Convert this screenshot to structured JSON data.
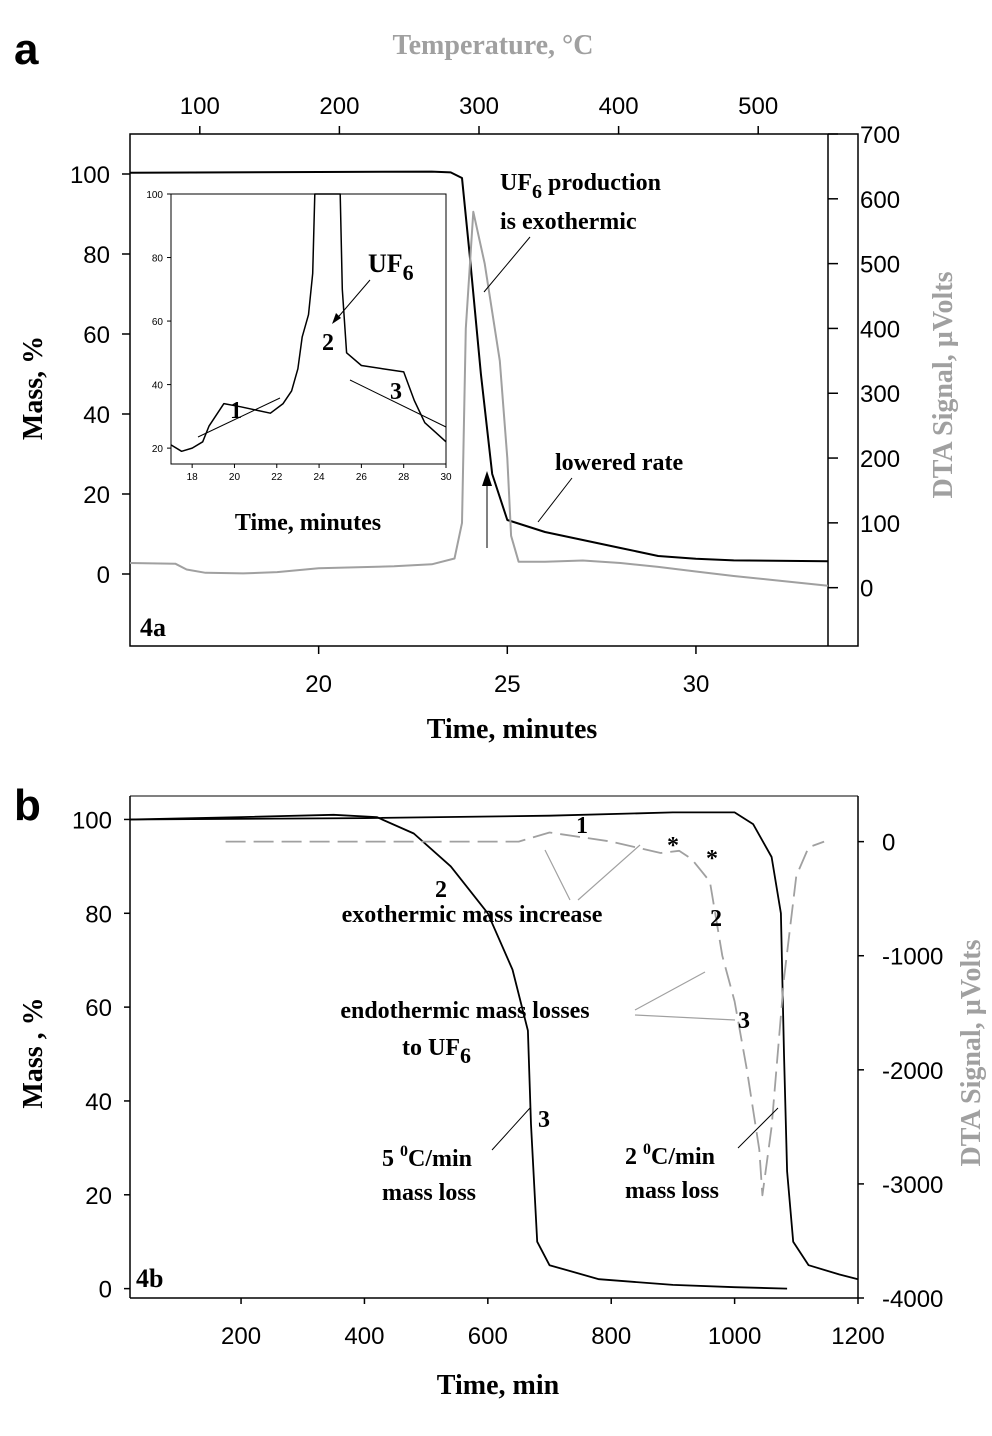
{
  "panel_a": {
    "letter": "a",
    "chart_data": {
      "type": "line",
      "xlabel": "Time, minutes",
      "top_xlabel": "Temperature, °C",
      "ylabel": "Mass, %",
      "y2label": "DTA Signal, µVolts",
      "panel_label": "4a",
      "xlim": [
        15,
        33.5
      ],
      "ylim": [
        -18,
        110
      ],
      "top_xlim": [
        50,
        550
      ],
      "y2lim": [
        -90,
        700
      ],
      "x_ticks": [
        20,
        25,
        30
      ],
      "y_ticks": [
        0,
        20,
        40,
        60,
        80,
        100
      ],
      "top_x_ticks": [
        100,
        200,
        300,
        400,
        500
      ],
      "y2_ticks": [
        0,
        100,
        200,
        300,
        400,
        500,
        600,
        700
      ],
      "series": [
        {
          "color": "#000000",
          "axis": "left",
          "points": [
            [
              15,
              100.3
            ],
            [
              20,
              100.5
            ],
            [
              23,
              100.6
            ],
            [
              23.5,
              100.4
            ],
            [
              23.8,
              99
            ],
            [
              24.0,
              80
            ],
            [
              24.3,
              50
            ],
            [
              24.6,
              25
            ],
            [
              25.0,
              13.5
            ],
            [
              25.5,
              12
            ],
            [
              26,
              10.5
            ],
            [
              27,
              8.5
            ],
            [
              28,
              6.5
            ],
            [
              29,
              4.5
            ],
            [
              30,
              3.8
            ],
            [
              31,
              3.4
            ],
            [
              33.5,
              3.2
            ]
          ]
        },
        {
          "color": "#a0a0a0",
          "axis": "right",
          "points": [
            [
              15,
              38
            ],
            [
              16.2,
              37
            ],
            [
              16.5,
              28
            ],
            [
              17,
              23
            ],
            [
              18,
              22
            ],
            [
              18.9,
              24
            ],
            [
              20,
              30
            ],
            [
              22,
              33
            ],
            [
              23,
              36
            ],
            [
              23.6,
              45
            ],
            [
              23.8,
              100
            ],
            [
              23.9,
              400
            ],
            [
              24.1,
              580
            ],
            [
              24.4,
              500
            ],
            [
              24.8,
              350
            ],
            [
              25.0,
              200
            ],
            [
              25.1,
              80
            ],
            [
              25.3,
              40
            ],
            [
              26,
              40
            ],
            [
              27,
              42
            ],
            [
              28,
              38
            ],
            [
              29,
              32
            ],
            [
              30,
              25
            ],
            [
              31,
              18
            ],
            [
              32,
              12
            ],
            [
              33.5,
              3
            ]
          ]
        }
      ],
      "annotations": [
        {
          "text": "UF",
          "sub": "6",
          "text2": " production"
        },
        {
          "text": "is exothermic"
        },
        {
          "text": "lowered rate"
        }
      ]
    },
    "inset": {
      "chart_data": {
        "type": "line",
        "xlabel": "Time, minutes",
        "xlim": [
          17,
          30
        ],
        "ylim": [
          15,
          100
        ],
        "x_ticks": [
          18,
          20,
          22,
          24,
          26,
          28,
          30
        ],
        "y_ticks": [
          20,
          40,
          60,
          80,
          100
        ],
        "series": [
          {
            "color": "#000000",
            "points": [
              [
                17,
                21
              ],
              [
                17.5,
                19
              ],
              [
                18,
                20
              ],
              [
                18.5,
                22
              ],
              [
                18.8,
                27
              ],
              [
                19.5,
                34
              ],
              [
                20.3,
                33
              ],
              [
                21,
                32
              ],
              [
                21.7,
                31
              ],
              [
                22.3,
                34
              ],
              [
                22.7,
                38
              ],
              [
                23.0,
                45
              ],
              [
                23.2,
                55
              ],
              [
                23.5,
                62
              ],
              [
                23.7,
                75
              ],
              [
                23.8,
                100
              ],
              [
                25.0,
                100
              ],
              [
                25.1,
                70
              ],
              [
                25.3,
                50
              ],
              [
                26,
                46
              ],
              [
                27,
                45
              ],
              [
                28,
                44
              ],
              [
                28.5,
                35
              ],
              [
                29,
                28
              ],
              [
                29.5,
                25
              ],
              [
                30,
                22
              ]
            ]
          }
        ],
        "labels": [
          "1",
          "2",
          "3",
          "UF",
          "6"
        ]
      }
    }
  },
  "panel_b": {
    "letter": "b",
    "chart_data": {
      "type": "line",
      "xlabel": "Time, min",
      "ylabel": "Mass , %",
      "y2label": "DTA Signal, µVolts",
      "panel_label": "4b",
      "xlim": [
        20,
        1200
      ],
      "ylim": [
        -2,
        105
      ],
      "y2lim": [
        -4000,
        400
      ],
      "x_ticks": [
        200,
        400,
        600,
        800,
        1000,
        1200
      ],
      "y_ticks": [
        0,
        20,
        40,
        60,
        80,
        100
      ],
      "y2_ticks": [
        0,
        -1000,
        -2000,
        -3000,
        -4000
      ],
      "series": [
        {
          "color": "#000000",
          "axis": "left",
          "points": [
            [
              20,
              100
            ],
            [
              200,
              100.5
            ],
            [
              350,
              101
            ],
            [
              420,
              100.5
            ],
            [
              480,
              97
            ],
            [
              540,
              90
            ],
            [
              600,
              80
            ],
            [
              640,
              68
            ],
            [
              665,
              55
            ],
            [
              670,
              35
            ],
            [
              680,
              10
            ],
            [
              700,
              5
            ],
            [
              780,
              2
            ],
            [
              900,
              0.8
            ],
            [
              1000,
              0.3
            ],
            [
              1085,
              0
            ]
          ]
        },
        {
          "color": "#000000",
          "axis": "left",
          "points": [
            [
              20,
              100
            ],
            [
              400,
              100.3
            ],
            [
              700,
              100.8
            ],
            [
              900,
              101.5
            ],
            [
              1000,
              101.5
            ],
            [
              1030,
              99
            ],
            [
              1060,
              92
            ],
            [
              1075,
              80
            ],
            [
              1080,
              50
            ],
            [
              1085,
              25
            ],
            [
              1095,
              10
            ],
            [
              1120,
              5
            ],
            [
              1170,
              3
            ],
            [
              1200,
              2
            ]
          ]
        },
        {
          "color": "#a0a0a0",
          "dashed": true,
          "axis": "right",
          "points": [
            [
              175,
              0
            ],
            [
              650,
              0
            ],
            [
              700,
              80
            ],
            [
              800,
              0
            ],
            [
              880,
              -100
            ],
            [
              910,
              -80
            ],
            [
              930,
              -150
            ],
            [
              945,
              -250
            ],
            [
              960,
              -350
            ],
            [
              980,
              -1000
            ],
            [
              1000,
              -1400
            ],
            [
              1020,
              -2000
            ],
            [
              1040,
              -2700
            ],
            [
              1045,
              -3100
            ],
            [
              1060,
              -2500
            ],
            [
              1080,
              -1200
            ],
            [
              1100,
              -300
            ],
            [
              1120,
              -50
            ],
            [
              1145,
              0
            ]
          ]
        }
      ],
      "annotations": [
        {
          "text": "exothermic mass increase"
        },
        {
          "text": "endothermic mass losses"
        },
        {
          "text": "to UF",
          "sub": "6"
        },
        {
          "text": "5 ",
          "sup": "0",
          "text2": "C/min"
        },
        {
          "text": "mass loss"
        },
        {
          "text": "2 ",
          "sup": "0",
          "text2": "C/min"
        },
        {
          "text": "mass loss"
        },
        {
          "text": "1"
        },
        {
          "text": "2"
        },
        {
          "text": "3"
        },
        {
          "text": "*"
        },
        {
          "text": "*"
        },
        {
          "text": "2"
        },
        {
          "text": "3"
        }
      ]
    }
  }
}
